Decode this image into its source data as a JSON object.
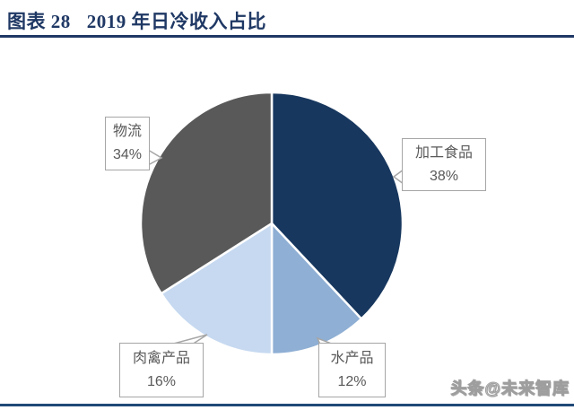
{
  "header": {
    "figure_label": "图表 28",
    "title": "2019 年日冷收入占比"
  },
  "chart_data": {
    "type": "pie",
    "title": "2019 年日冷收入占比",
    "categories": [
      "加工食品",
      "水产品",
      "肉禽产品",
      "物流"
    ],
    "values": [
      38,
      12,
      16,
      34
    ],
    "unit": "%",
    "colors": [
      "#17375e",
      "#8fafd4",
      "#c6d9f0",
      "#595959"
    ],
    "start_angle_deg": -90,
    "direction": "clockwise",
    "legend_position": "none",
    "labels": [
      {
        "name": "加工食品",
        "percent": "38%"
      },
      {
        "name": "水产品",
        "percent": "12%"
      },
      {
        "name": "肉禽产品",
        "percent": "16%"
      },
      {
        "name": "物流",
        "percent": "34%"
      }
    ]
  },
  "watermark": {
    "text": "头条@未来智库"
  },
  "colors": {
    "accent_navy": "#1f3864",
    "rule_bottom": "#1f4977",
    "callout_border": "#a6a6a6",
    "callout_text": "#595959"
  }
}
